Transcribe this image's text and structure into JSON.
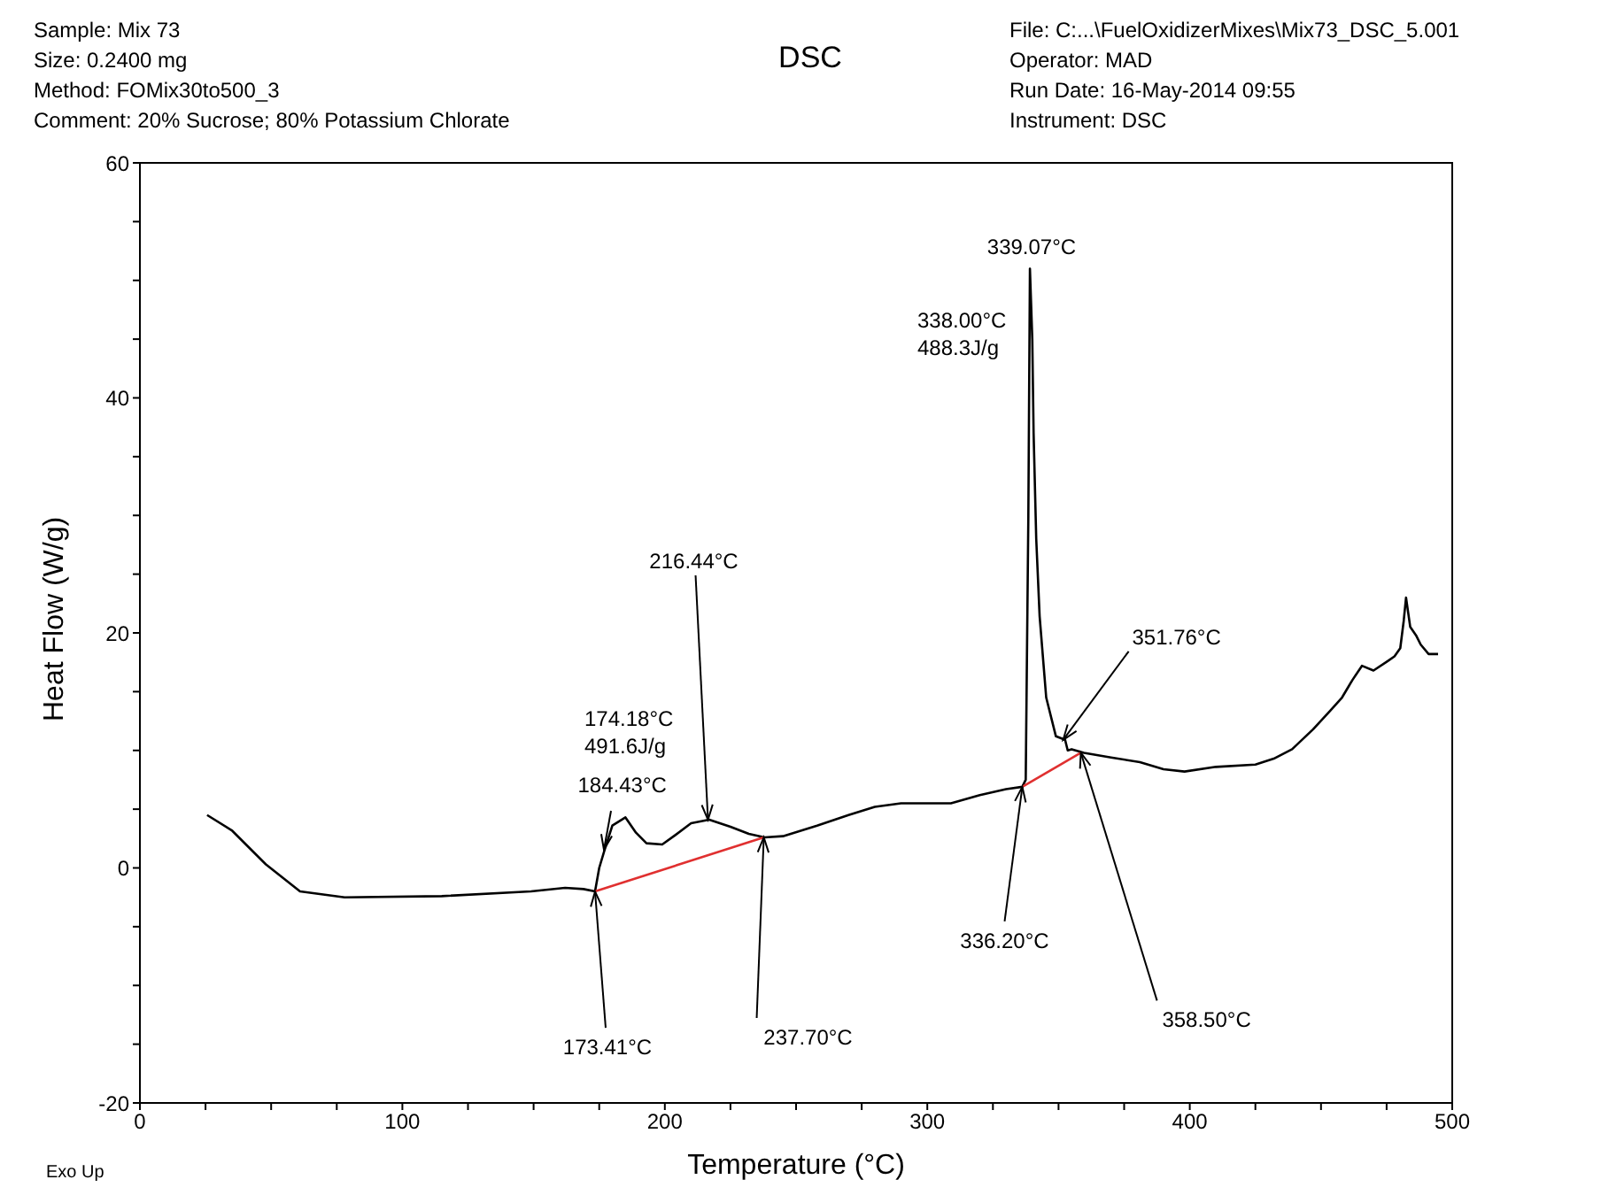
{
  "chart_data": {
    "type": "line",
    "title": "DSC",
    "xlabel": "Temperature (°C)",
    "ylabel": "Heat Flow (W/g)",
    "xlim": [
      0,
      500
    ],
    "ylim": [
      -20,
      60
    ],
    "xticks": [
      0,
      {
        "value": 25,
        "label": null
      },
      {
        "value": 50,
        "label": null
      },
      {
        "value": 75,
        "label": null
      },
      100,
      {
        "value": 125,
        "label": null
      },
      {
        "value": 150,
        "label": null
      },
      {
        "value": 175,
        "label": null
      },
      200,
      {
        "value": 225,
        "label": null
      },
      {
        "value": 250,
        "label": null
      },
      {
        "value": 275,
        "label": null
      },
      300,
      {
        "value": 325,
        "label": null
      },
      {
        "value": 350,
        "label": null
      },
      {
        "value": 375,
        "label": null
      },
      400,
      {
        "value": 425,
        "label": null
      },
      {
        "value": 450,
        "label": null
      },
      {
        "value": 475,
        "label": null
      },
      500
    ],
    "yticks": [
      -20,
      {
        "value": -15,
        "label": null
      },
      {
        "value": -10,
        "label": null
      },
      {
        "value": -5,
        "label": null
      },
      0,
      {
        "value": 5,
        "label": null
      },
      {
        "value": 10,
        "label": null
      },
      {
        "value": 15,
        "label": null
      },
      20,
      {
        "value": 25,
        "label": null
      },
      {
        "value": 30,
        "label": null
      },
      {
        "value": 35,
        "label": null
      },
      40,
      {
        "value": 45,
        "label": null
      },
      {
        "value": 50,
        "label": null
      },
      {
        "value": 55,
        "label": null
      },
      60
    ],
    "grid": false,
    "series": [
      {
        "color": "#000000",
        "x": [
          25.6,
          35,
          48,
          61,
          78,
          115,
          149,
          162,
          169,
          173.41,
          175,
          177,
          180,
          185,
          189,
          193,
          199,
          204,
          210,
          216.9,
          225,
          232,
          238,
          245,
          258,
          270,
          280,
          290,
          309,
          320,
          330,
          336.2,
          337.5,
          338.5,
          339.1,
          340,
          340.5,
          341.5,
          342.8,
          345.3,
          349,
          352.5,
          353.5,
          355,
          359.7,
          370,
          381,
          390,
          398,
          410,
          425,
          432,
          439,
          447,
          453.6,
          458,
          462,
          465.6,
          470,
          475.4,
          478,
          480.2,
          481.5,
          482.4,
          484,
          486.2,
          488,
          491,
          494.6
        ],
        "values": [
          4.5,
          3.2,
          0.3,
          -2.0,
          -2.5,
          -2.4,
          -2.0,
          -1.7,
          -1.8,
          -2.0,
          0,
          1.5,
          3.6,
          4.3,
          3.0,
          2.1,
          2.0,
          2.8,
          3.8,
          4.1,
          3.5,
          2.9,
          2.6,
          2.7,
          3.6,
          4.5,
          5.2,
          5.5,
          5.5,
          6.2,
          6.7,
          6.9,
          7.5,
          30,
          51,
          45,
          37,
          28,
          21.4,
          14.5,
          11.2,
          10.9,
          10.0,
          10.1,
          9.8,
          9.4,
          9.0,
          8.4,
          8.2,
          8.6,
          8.8,
          9.3,
          10.1,
          11.8,
          13.4,
          14.5,
          16.0,
          17.2,
          16.8,
          17.6,
          18.0,
          18.7,
          21,
          23.0,
          20.5,
          19.8,
          19.0,
          18.2,
          18.2
        ]
      },
      {
        "color": "#e03030",
        "x": [
          173.41,
          237.7
        ],
        "values": [
          -2.0,
          2.6
        ]
      },
      {
        "color": "#e03030",
        "x": [
          336.2,
          358.5
        ],
        "values": [
          6.9,
          9.8
        ]
      }
    ],
    "annotations": [
      "Sample: Mix 73",
      "Size:  0.2400 mg",
      "Method: FOMix30to500_3",
      "Comment: 20% Sucrose; 80% Potassium Chlorate",
      "File: C:...\\FuelOxidizerMixes\\Mix73_DSC_5.001",
      "Operator: MAD",
      "Run Date: 16-May-2014 09:55",
      "Instrument: DSC",
      "Exo Up",
      "338.00°C\n488.3J/g",
      {
        "text": "339.07°C",
        "x": 339.07,
        "y": 51
      },
      "174.18°C\n491.6J/g",
      {
        "text": "184.43°C",
        "x": 184.43,
        "y": 4.3
      },
      {
        "text": "216.44°C",
        "x": 216.44,
        "y": 4.1
      },
      {
        "text": "173.41°C",
        "x": 173.41,
        "y": -2.0
      },
      {
        "text": "237.70°C",
        "x": 237.7,
        "y": 2.6
      },
      {
        "text": "336.20°C",
        "x": 336.2,
        "y": 6.9
      },
      {
        "text": "358.50°C",
        "x": 358.5,
        "y": 9.8
      },
      {
        "text": "351.76°C",
        "x": 351.76,
        "y": 10.9
      }
    ]
  }
}
